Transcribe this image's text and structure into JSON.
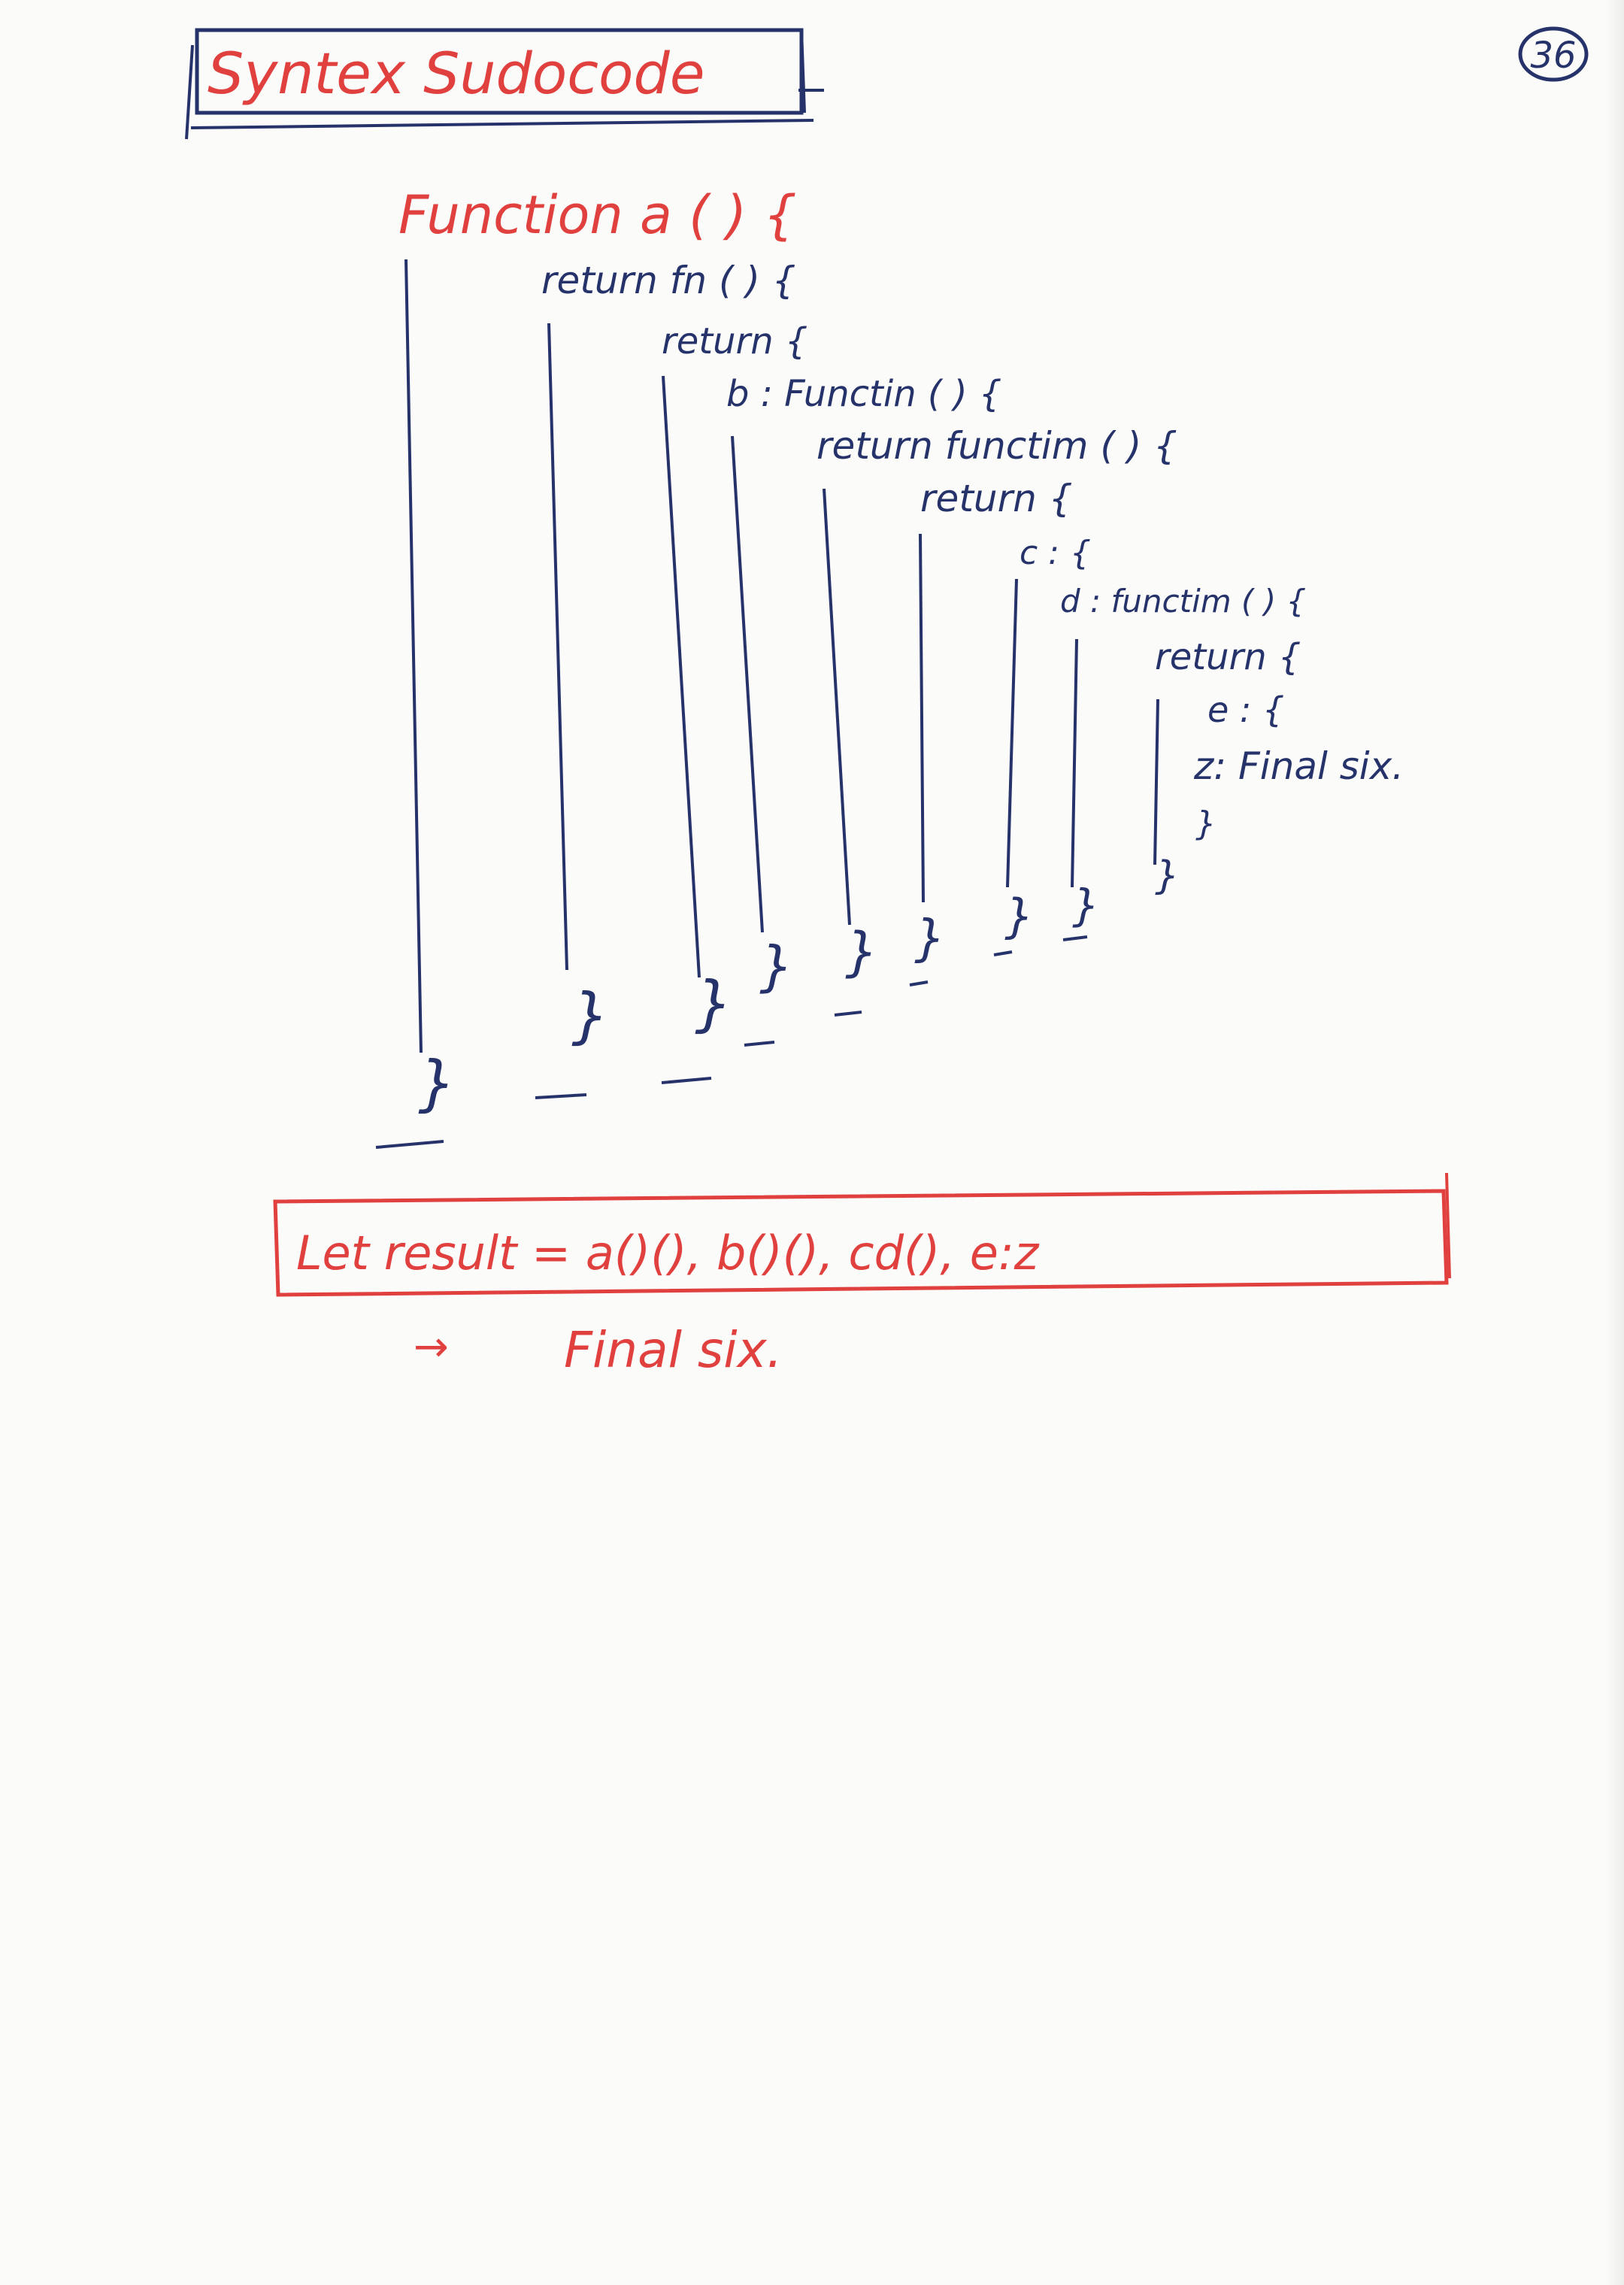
{
  "page_number": "36",
  "title": "Syntex Sudocode",
  "code": {
    "lines": [
      "Function a ( ) {",
      "return fn ( ) {",
      "return {",
      "b : Functin ( ) {",
      "return functim ( ) {",
      "return {",
      "c : {",
      "d : functim ( ) {",
      "return {",
      "e : {",
      "z: Final six."
    ],
    "closing_brace": "}"
  },
  "result_box": {
    "text": "Let result = a()(), b()(), cd(), e:z"
  },
  "output": {
    "arrow": "→",
    "text": "Final six."
  },
  "colors": {
    "blue_ink": "#26336b",
    "red_ink": "#e0403e",
    "paper": "#fbfbf9"
  }
}
